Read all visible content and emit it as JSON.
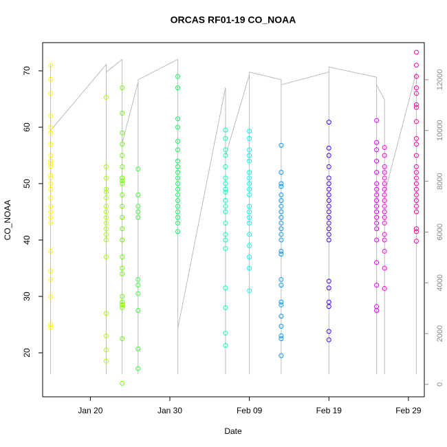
{
  "chart_data": {
    "type": "scatter",
    "title": "ORCAS RF01-19 CO_NOAA",
    "x_label": "Date",
    "y_label": "CO_NOAA",
    "xlim": [
      "Jan 14",
      "Mar 02"
    ],
    "xticks": [
      "Jan 20",
      "Jan 30",
      "Feb 09",
      "Feb 19",
      "Feb 29"
    ],
    "ylim": [
      12.2,
      75
    ],
    "yticks": [
      20,
      30,
      40,
      50,
      60,
      70
    ],
    "y2lim": [
      -490,
      13460
    ],
    "y2ticks": [
      0,
      2000,
      4000,
      6000,
      8000,
      10000,
      12000
    ],
    "series": [
      {
        "color": "#ffff00",
        "x": "Jan 15",
        "values": [
          71,
          68.5,
          66,
          62,
          60,
          59,
          57,
          55,
          54,
          53.5,
          53,
          51.5,
          51,
          50,
          49,
          47.5,
          46,
          45,
          44,
          43,
          38,
          34.5,
          33,
          30,
          25,
          24.5
        ]
      },
      {
        "color": "#aaff00",
        "x": "Jan 22",
        "values": [
          65.3,
          53,
          51,
          49,
          48.5,
          47.5,
          46,
          45,
          44,
          43,
          42,
          41,
          40,
          37,
          27,
          23,
          20.5,
          18.5
        ]
      },
      {
        "color": "#66ff00",
        "x": "Jan 24",
        "values": [
          67,
          62.5,
          59,
          57,
          55,
          53,
          51,
          50.5,
          50,
          48,
          46,
          44,
          42,
          40,
          37,
          35,
          34,
          30,
          29,
          28.5,
          28,
          22.5,
          14.6
        ]
      },
      {
        "color": "#33ff33",
        "x": "Jan 26",
        "values": [
          52.6,
          48,
          46,
          45,
          44,
          33,
          32,
          30.5,
          27.5,
          20.7,
          17.2
        ]
      },
      {
        "color": "#00ff55",
        "x": "Jan 31",
        "values": [
          69,
          67,
          61.5,
          60,
          57.5,
          56,
          54,
          53,
          52,
          51,
          50,
          49,
          48,
          47,
          46,
          45,
          44,
          43,
          41.5
        ]
      },
      {
        "color": "#00ffbb",
        "x": "Feb 06",
        "values": [
          59.5,
          58,
          56,
          55,
          53,
          51,
          50,
          49,
          48.5,
          47,
          46,
          45,
          43,
          41,
          40,
          38.5,
          31.5,
          28,
          23.5,
          21.3
        ]
      },
      {
        "color": "#00ffee",
        "x": "Feb 09",
        "values": [
          59.3,
          58,
          56,
          55,
          54,
          52,
          51,
          50,
          49,
          48,
          46,
          45,
          44,
          43,
          41,
          39,
          37,
          35,
          31
        ]
      },
      {
        "color": "#0099ff",
        "x": "Feb 13",
        "values": [
          56.8,
          52,
          50,
          49.5,
          48,
          47,
          46,
          45,
          44,
          43,
          42,
          41,
          40,
          38,
          37.5,
          33,
          32,
          29,
          28.5,
          26.5,
          24.7,
          23,
          22.5,
          19.5
        ]
      },
      {
        "color": "#4400ff",
        "x": "Feb 19",
        "values": [
          60.9,
          56.3,
          55,
          53,
          51,
          50,
          49,
          48,
          47,
          46,
          45,
          44,
          43,
          42,
          41,
          40,
          32.7,
          31.5,
          29,
          28.2,
          23.8,
          22.3
        ]
      },
      {
        "color": "#dd00ff",
        "x": "Feb 25",
        "values": [
          61.2,
          57.3,
          56,
          54,
          52,
          50,
          49,
          48,
          47,
          46,
          45,
          44,
          43,
          42,
          40,
          36,
          32,
          28.2,
          27.5
        ]
      },
      {
        "color": "#ff00dd",
        "x": "Feb 26",
        "values": [
          56.4,
          55,
          53,
          52,
          51,
          50,
          49,
          48,
          47,
          46,
          45,
          44,
          43,
          41,
          40,
          38,
          35,
          31.4
        ]
      },
      {
        "color": "#ff0099",
        "x": "Mar 01",
        "values": [
          73.3,
          71,
          69,
          67,
          66,
          64,
          63.5,
          61,
          58,
          57,
          55,
          53,
          52,
          51,
          50,
          49,
          48,
          47,
          46,
          45,
          42,
          41.5,
          39.8
        ]
      },
      {
        "color": "#bbbbbb",
        "axis": "y2",
        "line": true,
        "x": [
          "Jan 15",
          "Jan 15",
          "Jan 15",
          "Jan 15",
          "Jan 22",
          "Jan 22",
          "Jan 22",
          "Jan 24",
          "Jan 24",
          "Jan 24",
          "Jan 26",
          "Jan 26",
          "Jan 26",
          "Jan 31",
          "Jan 31",
          "Jan 31",
          "Feb 06",
          "Feb 06",
          "Feb 06",
          "Feb 09",
          "Feb 09",
          "Feb 09",
          "Feb 13",
          "Feb 13",
          "Feb 13",
          "Feb 19",
          "Feb 19",
          "Feb 19",
          "Feb 25",
          "Feb 25",
          "Feb 25",
          "Feb 26",
          "Feb 26",
          "Feb 26",
          "Mar 01",
          "Mar 01"
        ],
        "values": [
          400,
          12600,
          400,
          10000,
          12600,
          400,
          12300,
          12800,
          400,
          9500,
          11900,
          400,
          12000,
          12800,
          400,
          2200,
          11700,
          400,
          9000,
          12200,
          400,
          12300,
          12000,
          400,
          11800,
          12300,
          400,
          12500,
          12100,
          400,
          11800,
          11200,
          400,
          7500,
          12300,
          400
        ]
      }
    ]
  }
}
